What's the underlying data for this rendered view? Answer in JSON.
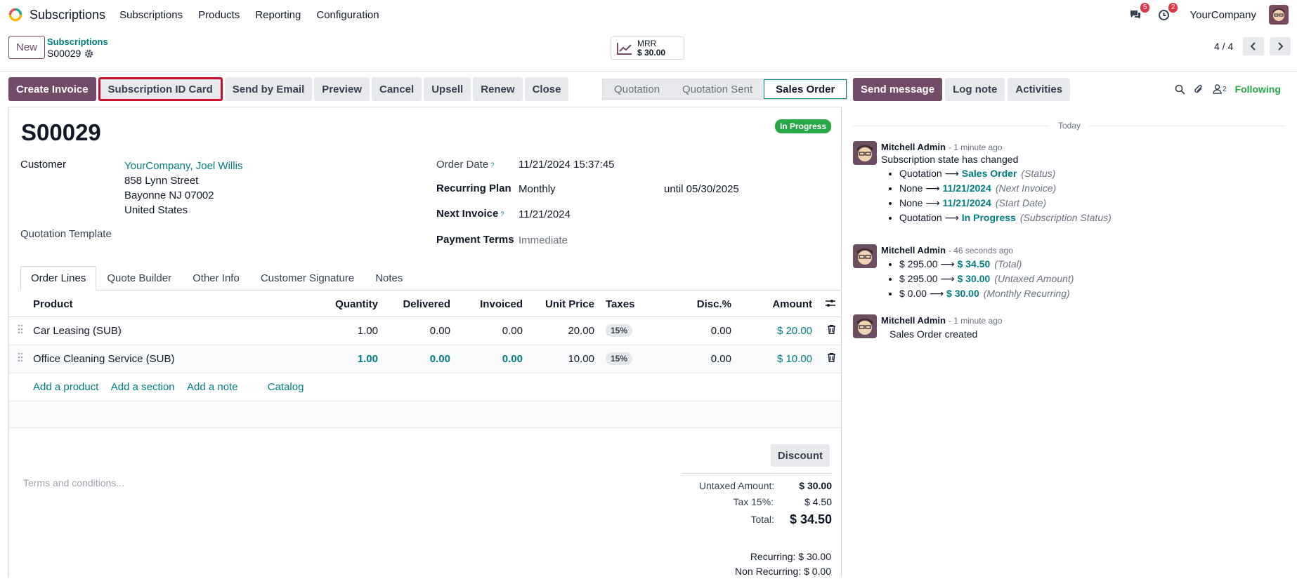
{
  "navbar": {
    "app_name": "Subscriptions",
    "menus": [
      "Subscriptions",
      "Products",
      "Reporting",
      "Configuration"
    ],
    "messages_count": "5",
    "activities_count": "2",
    "company": "YourCompany"
  },
  "control": {
    "new_label": "New",
    "breadcrumb_parent": "Subscriptions",
    "record_name": "S00029",
    "mrr_label": "MRR",
    "mrr_value": "$ 30.00",
    "pager": "4 / 4"
  },
  "actions": {
    "create_invoice": "Create Invoice",
    "subscription_id_card": "Subscription ID Card",
    "send_by_email": "Send by Email",
    "preview": "Preview",
    "cancel": "Cancel",
    "upsell": "Upsell",
    "renew": "Renew",
    "close": "Close"
  },
  "statusbar": {
    "steps": [
      "Quotation",
      "Quotation Sent",
      "Sales Order"
    ],
    "active": "Sales Order"
  },
  "form": {
    "title": "S00029",
    "state_badge": "In Progress",
    "customer_label": "Customer",
    "customer_name": "YourCompany, Joel Willis",
    "address_line1": "858 Lynn Street",
    "address_line2": "Bayonne NJ 07002",
    "address_line3": "United States",
    "quotation_template_label": "Quotation Template",
    "order_date_label": "Order Date",
    "order_date": "11/21/2024 15:37:45",
    "recurring_plan_label": "Recurring Plan",
    "recurring_plan": "Monthly",
    "until": "until 05/30/2025",
    "next_invoice_label": "Next Invoice",
    "next_invoice": "11/21/2024",
    "payment_terms_label": "Payment Terms",
    "payment_terms": "Immediate",
    "help_mark": "?"
  },
  "tabs": [
    "Order Lines",
    "Quote Builder",
    "Other Info",
    "Customer Signature",
    "Notes"
  ],
  "order_lines": {
    "headers": {
      "product": "Product",
      "quantity": "Quantity",
      "delivered": "Delivered",
      "invoiced": "Invoiced",
      "unit_price": "Unit Price",
      "taxes": "Taxes",
      "disc": "Disc.%",
      "amount": "Amount"
    },
    "rows": [
      {
        "product": "Car Leasing (SUB)",
        "quantity": "1.00",
        "delivered": "0.00",
        "invoiced": "0.00",
        "unit_price": "20.00",
        "tax": "15%",
        "disc": "0.00",
        "amount": "$ 20.00"
      },
      {
        "product": "Office Cleaning Service (SUB)",
        "quantity": "1.00",
        "delivered": "0.00",
        "invoiced": "0.00",
        "unit_price": "10.00",
        "tax": "15%",
        "disc": "0.00",
        "amount": "$ 10.00"
      }
    ],
    "add_product": "Add a product",
    "add_section": "Add a section",
    "add_note": "Add a note",
    "catalog": "Catalog"
  },
  "totals": {
    "discount_button": "Discount",
    "terms_placeholder": "Terms and conditions...",
    "untaxed_label": "Untaxed Amount:",
    "untaxed": "$ 30.00",
    "tax_label": "Tax 15%:",
    "tax": "$ 4.50",
    "total_label": "Total:",
    "total": "$ 34.50",
    "recurring": "Recurring: $ 30.00",
    "non_recurring": "Non Recurring: $ 0.00"
  },
  "chatter": {
    "send_message": "Send message",
    "log_note": "Log note",
    "activities": "Activities",
    "followers_count": "2",
    "following": "Following",
    "date_separator": "Today",
    "messages": [
      {
        "author": "Mitchell Admin",
        "time": "- 1 minute ago",
        "body": "Subscription state has changed",
        "changes": [
          {
            "old": "Quotation",
            "new": "Sales Order",
            "field": "(Status)"
          },
          {
            "old": "None",
            "new": "11/21/2024",
            "field": "(Next Invoice)"
          },
          {
            "old": "None",
            "new": "11/21/2024",
            "field": "(Start Date)"
          },
          {
            "old": "Quotation",
            "new": "In Progress",
            "field": "(Subscription Status)"
          }
        ]
      },
      {
        "author": "Mitchell Admin",
        "time": "- 46 seconds ago",
        "body": "",
        "changes": [
          {
            "old": "$ 295.00",
            "new": "$ 34.50",
            "field": "(Total)"
          },
          {
            "old": "$ 295.00",
            "new": "$ 30.00",
            "field": "(Untaxed Amount)"
          },
          {
            "old": "$ 0.00",
            "new": "$ 30.00",
            "field": "(Monthly Recurring)"
          }
        ]
      },
      {
        "author": "Mitchell Admin",
        "time": "- 1 minute ago",
        "body": "Sales Order created",
        "changes": []
      }
    ]
  },
  "colors": {
    "primary": "#714b67",
    "link": "#017e84",
    "success": "#28a745",
    "highlight_border": "#c8102e"
  }
}
